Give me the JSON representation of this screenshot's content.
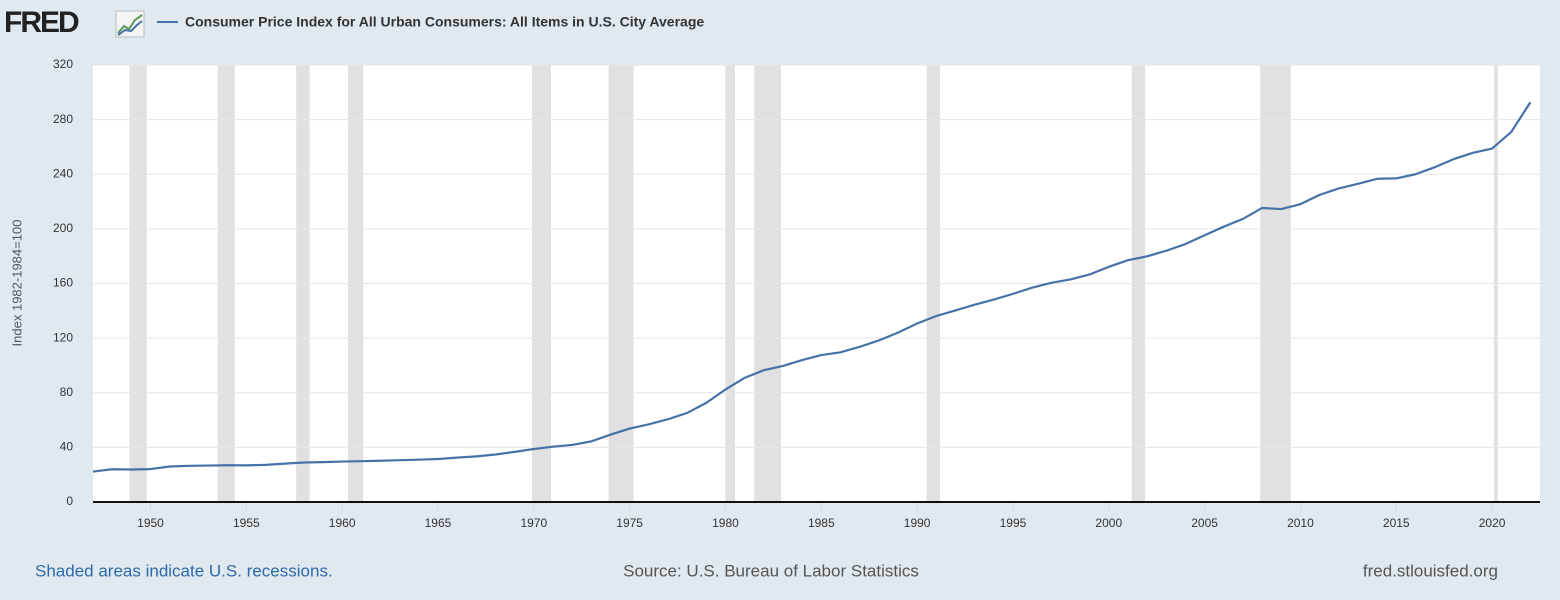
{
  "chart_data": {
    "type": "line",
    "logo": "FRED",
    "y_label": "Index 1982-1984=100",
    "note": "Shaded areas indicate U.S. recessions.",
    "source": "Source: U.S. Bureau of Labor Statistics",
    "site": "fred.stlouisfed.org",
    "x": [
      1947,
      1948,
      1949,
      1950,
      1951,
      1952,
      1953,
      1954,
      1955,
      1956,
      1957,
      1958,
      1959,
      1960,
      1961,
      1962,
      1963,
      1964,
      1965,
      1966,
      1967,
      1968,
      1969,
      1970,
      1971,
      1972,
      1973,
      1974,
      1975,
      1976,
      1977,
      1978,
      1979,
      1980,
      1981,
      1982,
      1983,
      1984,
      1985,
      1986,
      1987,
      1988,
      1989,
      1990,
      1991,
      1992,
      1993,
      1994,
      1995,
      1996,
      1997,
      1998,
      1999,
      2000,
      2001,
      2002,
      2003,
      2004,
      2005,
      2006,
      2007,
      2008,
      2009,
      2010,
      2011,
      2012,
      2013,
      2014,
      2015,
      2016,
      2017,
      2018,
      2019,
      2020,
      2021,
      2022
    ],
    "series": [
      {
        "name": "Consumer Price Index for All Urban Consumers: All Items in U.S. City Average",
        "color": "#4572a7",
        "values": [
          22.3,
          24.0,
          23.8,
          24.1,
          26.0,
          26.5,
          26.7,
          26.9,
          26.8,
          27.2,
          28.1,
          28.9,
          29.2,
          29.6,
          29.9,
          30.2,
          30.6,
          31.0,
          31.5,
          32.5,
          33.4,
          34.8,
          36.7,
          38.8,
          40.5,
          41.8,
          44.4,
          49.3,
          53.8,
          56.9,
          60.6,
          65.2,
          72.6,
          82.4,
          90.9,
          96.5,
          99.6,
          103.9,
          107.6,
          109.6,
          113.6,
          118.3,
          124.0,
          130.7,
          136.2,
          140.3,
          144.5,
          148.2,
          152.4,
          156.9,
          160.5,
          163.0,
          166.6,
          172.2,
          177.1,
          179.9,
          184.0,
          188.9,
          195.3,
          201.6,
          207.3,
          215.3,
          214.5,
          218.1,
          224.9,
          229.6,
          233.0,
          236.7,
          237.0,
          240.0,
          245.1,
          251.1,
          255.7,
          258.8,
          271.0,
          292.7
        ]
      }
    ],
    "recessions": [
      {
        "start": 1948.9,
        "end": 1949.8
      },
      {
        "start": 1953.5,
        "end": 1954.4
      },
      {
        "start": 1957.6,
        "end": 1958.3
      },
      {
        "start": 1960.3,
        "end": 1961.1
      },
      {
        "start": 1969.9,
        "end": 1970.9
      },
      {
        "start": 1973.9,
        "end": 1975.2
      },
      {
        "start": 1980.0,
        "end": 1980.5
      },
      {
        "start": 1981.5,
        "end": 1982.9
      },
      {
        "start": 1990.5,
        "end": 1991.2
      },
      {
        "start": 2001.2,
        "end": 2001.9
      },
      {
        "start": 2007.9,
        "end": 2009.5
      },
      {
        "start": 2020.1,
        "end": 2020.3
      }
    ],
    "recession_color": "#e1e1e1",
    "xlim": [
      1947,
      2022.5
    ],
    "xticks": [
      1950,
      1955,
      1960,
      1965,
      1970,
      1975,
      1980,
      1985,
      1990,
      1995,
      2000,
      2005,
      2010,
      2015,
      2020
    ],
    "ylim": [
      0,
      320
    ],
    "yticks": [
      0,
      40,
      80,
      120,
      160,
      200,
      240,
      280,
      320
    ],
    "grid": true
  }
}
